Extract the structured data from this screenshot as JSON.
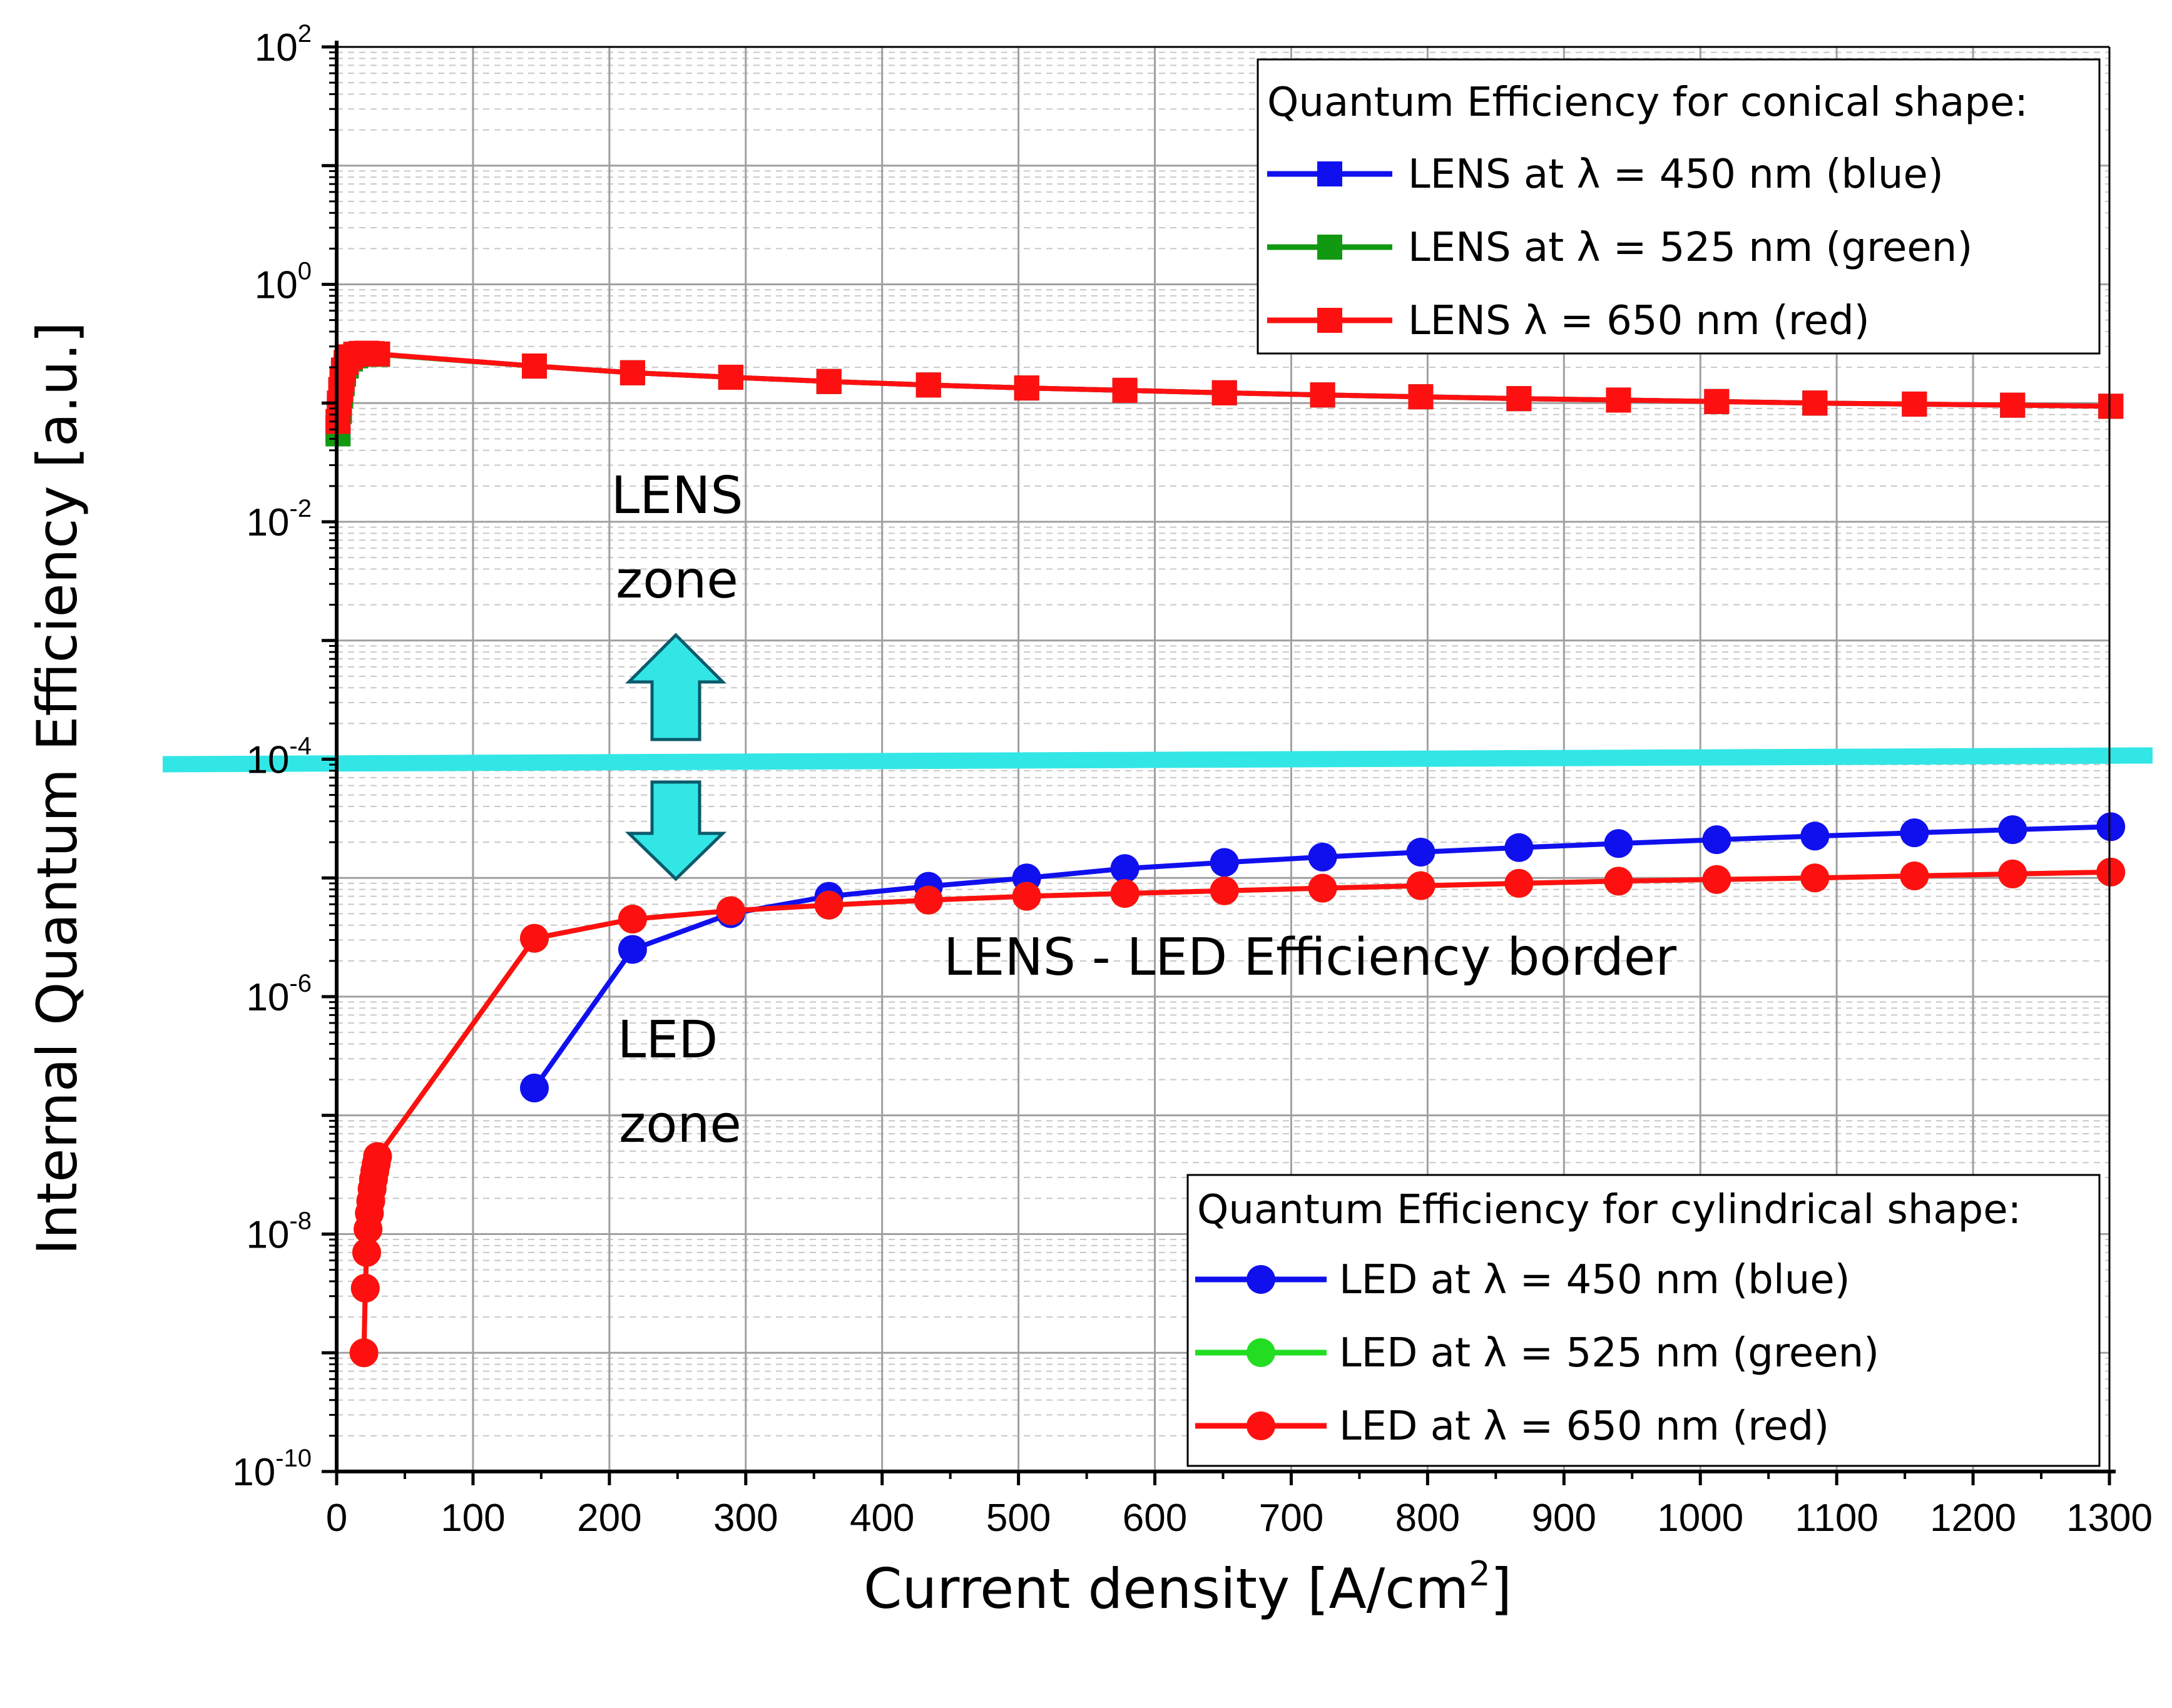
{
  "chart_data": {
    "type": "line",
    "title": "",
    "xlabel": "Current density [A/cm",
    "xlabel_sup": "2",
    "xlabel_suffix": "]",
    "ylabel": "Internal Quantum Efficiency [a.u.]",
    "xlim": [
      0,
      1300
    ],
    "ylim": [
      1e-10,
      100
    ],
    "yscale": "log",
    "grid": true,
    "x_ticks": [
      0,
      100,
      200,
      300,
      400,
      500,
      600,
      700,
      800,
      900,
      1000,
      1100,
      1200,
      1300
    ],
    "y_tick_base": "10",
    "y_ticks": [
      {
        "value": 100,
        "exp": "2"
      },
      {
        "value": 1,
        "exp": "0"
      },
      {
        "value": 0.01,
        "exp": "-2"
      },
      {
        "value": 0.0001,
        "exp": "-4"
      },
      {
        "value": 1e-06,
        "exp": "-6"
      },
      {
        "value": 1e-08,
        "exp": "-8"
      },
      {
        "value": 1e-10,
        "exp": "-10"
      }
    ],
    "border_line": {
      "value": 0.0001,
      "color": "#33e6e6"
    },
    "legend_conical": {
      "title": "Quantum Efficiency for conical shape:",
      "placement": "top-right",
      "entries": [
        {
          "label": "LENS at λ = 450 nm (blue)",
          "color": "#1010ee",
          "marker": "square"
        },
        {
          "label": "LENS at λ = 525 nm (green)",
          "color": "#119911",
          "marker": "square"
        },
        {
          "label": "LENS λ = 650 nm (red)",
          "color": "#ff1010",
          "marker": "square"
        }
      ]
    },
    "legend_cylindrical": {
      "title": "Quantum Efficiency for cylindrical shape:",
      "placement": "bottom-right",
      "entries": [
        {
          "label": "LED at λ = 450 nm (blue)",
          "color": "#1010ee",
          "marker": "circle"
        },
        {
          "label": "LED at λ = 525 nm (green)",
          "color": "#22dd22",
          "marker": "circle"
        },
        {
          "label": "LED at λ = 650 nm (red)",
          "color": "#ff1010",
          "marker": "circle"
        }
      ]
    },
    "annotations": {
      "lens_zone_line1": "LENS",
      "lens_zone_line2": "zone",
      "led_zone_line1": "LED",
      "led_zone_line2": "zone",
      "border_label": "LENS - LED Efficiency border"
    },
    "series": [
      {
        "name": "LENS at λ = 450 nm (blue)",
        "color": "#1010ee",
        "marker": "square",
        "x": [
          1,
          2,
          3,
          4,
          5,
          7,
          10,
          14,
          18,
          22,
          26,
          30,
          145,
          217,
          289,
          361,
          434,
          506,
          578,
          651,
          723,
          795,
          867,
          940,
          1012,
          1084,
          1157,
          1229,
          1301
        ],
        "y": [
          0.06,
          0.09,
          0.12,
          0.15,
          0.18,
          0.21,
          0.24,
          0.255,
          0.26,
          0.262,
          0.26,
          0.258,
          0.205,
          0.18,
          0.165,
          0.152,
          0.142,
          0.134,
          0.128,
          0.122,
          0.117,
          0.113,
          0.109,
          0.106,
          0.103,
          0.1,
          0.098,
          0.096,
          0.094
        ]
      },
      {
        "name": "LENS at λ = 525 nm (green)",
        "color": "#119911",
        "marker": "square",
        "x": [
          1,
          2,
          3,
          4,
          5,
          7,
          10,
          14,
          18,
          22,
          26,
          30,
          145,
          217,
          289,
          361,
          434,
          506,
          578,
          651,
          723,
          795,
          867,
          940,
          1012,
          1084,
          1157,
          1229,
          1301
        ],
        "y": [
          0.055,
          0.085,
          0.115,
          0.145,
          0.175,
          0.205,
          0.235,
          0.25,
          0.258,
          0.26,
          0.259,
          0.257,
          0.205,
          0.18,
          0.165,
          0.152,
          0.142,
          0.134,
          0.128,
          0.122,
          0.117,
          0.113,
          0.109,
          0.106,
          0.103,
          0.1,
          0.098,
          0.096,
          0.094
        ]
      },
      {
        "name": "LENS λ = 650 nm (red)",
        "color": "#ff1010",
        "marker": "square",
        "x": [
          1,
          2,
          3,
          4,
          5,
          7,
          10,
          14,
          18,
          22,
          26,
          30,
          145,
          217,
          289,
          361,
          434,
          506,
          578,
          651,
          723,
          795,
          867,
          940,
          1012,
          1084,
          1157,
          1229,
          1301
        ],
        "y": [
          0.07,
          0.1,
          0.13,
          0.16,
          0.19,
          0.22,
          0.245,
          0.258,
          0.262,
          0.263,
          0.261,
          0.259,
          0.205,
          0.18,
          0.165,
          0.152,
          0.142,
          0.134,
          0.128,
          0.122,
          0.117,
          0.113,
          0.109,
          0.106,
          0.103,
          0.1,
          0.098,
          0.096,
          0.094
        ]
      },
      {
        "name": "LED at λ = 450 nm (blue)",
        "color": "#1010ee",
        "marker": "circle",
        "x": [
          145,
          217,
          289,
          361,
          434,
          506,
          578,
          651,
          723,
          795,
          867,
          940,
          1012,
          1084,
          1157,
          1229,
          1301
        ],
        "y": [
          1.7e-07,
          2.5e-06,
          5e-06,
          7e-06,
          8.5e-06,
          1e-05,
          1.2e-05,
          1.35e-05,
          1.5e-05,
          1.65e-05,
          1.8e-05,
          1.95e-05,
          2.1e-05,
          2.25e-05,
          2.4e-05,
          2.55e-05,
          2.7e-05
        ]
      },
      {
        "name": "LED at λ = 525 nm (green)",
        "color": "#22dd22",
        "marker": "circle",
        "x": [
          20,
          21,
          22,
          23,
          24,
          25,
          26,
          27,
          28,
          29,
          30,
          145,
          217,
          289,
          361,
          434,
          506,
          578,
          651,
          723,
          795,
          867,
          940,
          1012,
          1084,
          1157,
          1229,
          1301
        ],
        "y": [
          1e-09,
          3.5e-09,
          7e-09,
          1.1e-08,
          1.5e-08,
          1.9e-08,
          2.4e-08,
          2.9e-08,
          3.4e-08,
          3.9e-08,
          4.5e-08,
          3.1e-06,
          4.5e-06,
          5.3e-06,
          5.9e-06,
          6.5e-06,
          7e-06,
          7.4e-06,
          7.8e-06,
          8.2e-06,
          8.6e-06,
          9e-06,
          9.4e-06,
          9.7e-06,
          1e-05,
          1.04e-05,
          1.08e-05,
          1.12e-05
        ]
      },
      {
        "name": "LED at λ = 650 nm (red)",
        "color": "#ff1010",
        "marker": "circle",
        "x": [
          20,
          21,
          22,
          23,
          24,
          25,
          26,
          27,
          28,
          29,
          30,
          145,
          217,
          289,
          361,
          434,
          506,
          578,
          651,
          723,
          795,
          867,
          940,
          1012,
          1084,
          1157,
          1229,
          1301
        ],
        "y": [
          1e-09,
          3.5e-09,
          7e-09,
          1.1e-08,
          1.5e-08,
          1.9e-08,
          2.4e-08,
          2.9e-08,
          3.4e-08,
          3.9e-08,
          4.5e-08,
          3.1e-06,
          4.5e-06,
          5.3e-06,
          5.9e-06,
          6.5e-06,
          7e-06,
          7.4e-06,
          7.8e-06,
          8.2e-06,
          8.6e-06,
          9e-06,
          9.4e-06,
          9.7e-06,
          1e-05,
          1.04e-05,
          1.08e-05,
          1.12e-05
        ]
      }
    ]
  }
}
